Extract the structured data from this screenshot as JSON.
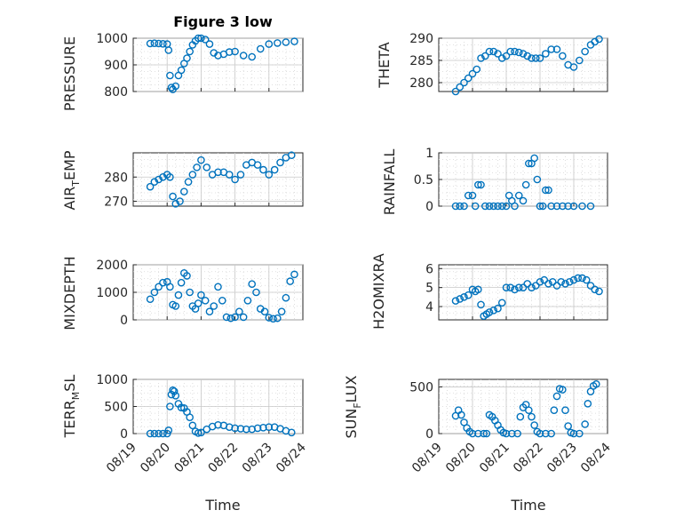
{
  "figure_title": "Figure 3 low",
  "marker_color": "#0072BD",
  "x_tick_labels": [
    "08/19",
    "08/20",
    "08/21",
    "08/22",
    "08/23",
    "08/24"
  ],
  "x_label": "Time",
  "chart_data": [
    {
      "type": "scatter",
      "title": "Figure 3 low",
      "ylabel": "PRESSURE",
      "xlabel": "",
      "ylim": [
        800,
        1000
      ],
      "yticks": [
        800,
        900,
        1000
      ],
      "xlim": [
        "08/19",
        "08/24"
      ],
      "x": [
        "08/19 12:00",
        "08/19 15:00",
        "08/19 18:00",
        "08/19 21:00",
        "08/20 00:00",
        "08/20 01:00",
        "08/20 02:00",
        "08/20 03:00",
        "08/20 04:00",
        "08/20 06:00",
        "08/20 08:00",
        "08/20 10:00",
        "08/20 12:00",
        "08/20 14:00",
        "08/20 16:00",
        "08/20 18:00",
        "08/20 20:00",
        "08/20 22:00",
        "08/21 00:00",
        "08/21 03:00",
        "08/21 06:00",
        "08/21 09:00",
        "08/21 12:00",
        "08/21 16:00",
        "08/21 20:00",
        "08/22 00:00",
        "08/22 06:00",
        "08/22 12:00",
        "08/22 18:00",
        "08/23 00:00",
        "08/23 06:00",
        "08/23 12:00",
        "08/23 18:00"
      ],
      "y": [
        980,
        981,
        980,
        979,
        978,
        955,
        860,
        815,
        808,
        820,
        860,
        880,
        905,
        925,
        950,
        975,
        990,
        1000,
        1000,
        995,
        978,
        945,
        935,
        940,
        948,
        950,
        935,
        930,
        960,
        978,
        982,
        985,
        988
      ]
    },
    {
      "type": "scatter",
      "ylabel": "THETA",
      "xlabel": "",
      "ylim": [
        278,
        290
      ],
      "yticks": [
        280,
        285,
        290
      ],
      "xlim": [
        "08/19",
        "08/24"
      ],
      "x": [
        "08/19 12:00",
        "08/19 15:00",
        "08/19 18:00",
        "08/19 21:00",
        "08/20 00:00",
        "08/20 03:00",
        "08/20 06:00",
        "08/20 09:00",
        "08/20 12:00",
        "08/20 15:00",
        "08/20 18:00",
        "08/20 21:00",
        "08/21 00:00",
        "08/21 03:00",
        "08/21 06:00",
        "08/21 09:00",
        "08/21 12:00",
        "08/21 15:00",
        "08/21 18:00",
        "08/21 21:00",
        "08/22 00:00",
        "08/22 04:00",
        "08/22 08:00",
        "08/22 12:00",
        "08/22 16:00",
        "08/22 20:00",
        "08/23 00:00",
        "08/23 04:00",
        "08/23 08:00",
        "08/23 12:00",
        "08/23 15:00",
        "08/23 18:00"
      ],
      "y": [
        278,
        279,
        280,
        281,
        282,
        283,
        285.5,
        286,
        287,
        287,
        286.5,
        285.5,
        286,
        287,
        287,
        286.8,
        286.5,
        286,
        285.5,
        285.5,
        285.5,
        286.5,
        287.5,
        287.5,
        286,
        284,
        283.5,
        285,
        287,
        288.5,
        289.2,
        289.8
      ]
    },
    {
      "type": "scatter",
      "ylabel": "AIR_TEMP",
      "xlabel": "",
      "ylim": [
        268,
        290
      ],
      "yticks": [
        270,
        280
      ],
      "xlim": [
        "08/19",
        "08/24"
      ],
      "x": [
        "08/19 12:00",
        "08/19 15:00",
        "08/19 18:00",
        "08/19 21:00",
        "08/20 00:00",
        "08/20 02:00",
        "08/20 04:00",
        "08/20 06:00",
        "08/20 09:00",
        "08/20 12:00",
        "08/20 15:00",
        "08/20 18:00",
        "08/20 21:00",
        "08/21 00:00",
        "08/21 04:00",
        "08/21 08:00",
        "08/21 12:00",
        "08/21 16:00",
        "08/21 20:00",
        "08/22 00:00",
        "08/22 04:00",
        "08/22 08:00",
        "08/22 12:00",
        "08/22 16:00",
        "08/22 20:00",
        "08/23 00:00",
        "08/23 04:00",
        "08/23 08:00",
        "08/23 12:00",
        "08/23 16:00"
      ],
      "y": [
        276,
        278,
        279,
        280,
        281,
        280,
        272,
        269,
        270,
        274,
        278,
        281,
        284,
        287,
        284,
        281,
        282,
        282,
        281,
        279,
        281,
        285,
        286,
        285,
        283,
        281,
        283,
        286,
        288,
        289
      ]
    },
    {
      "type": "scatter",
      "ylabel": "RAINFALL",
      "xlabel": "",
      "ylim": [
        0,
        1
      ],
      "yticks": [
        0,
        0.5,
        1
      ],
      "xlim": [
        "08/19",
        "08/24"
      ],
      "x": [
        "08/19 12:00",
        "08/19 15:00",
        "08/19 18:00",
        "08/19 21:00",
        "08/20 00:00",
        "08/20 02:00",
        "08/20 04:00",
        "08/20 06:00",
        "08/20 09:00",
        "08/20 12:00",
        "08/20 15:00",
        "08/20 18:00",
        "08/20 21:00",
        "08/21 00:00",
        "08/21 02:00",
        "08/21 04:00",
        "08/21 06:00",
        "08/21 09:00",
        "08/21 12:00",
        "08/21 14:00",
        "08/21 16:00",
        "08/21 18:00",
        "08/21 20:00",
        "08/21 22:00",
        "08/22 00:00",
        "08/22 02:00",
        "08/22 04:00",
        "08/22 06:00",
        "08/22 08:00",
        "08/22 12:00",
        "08/22 16:00",
        "08/22 20:00",
        "08/23 00:00",
        "08/23 06:00",
        "08/23 12:00"
      ],
      "y": [
        0,
        0,
        0,
        0.2,
        0.2,
        0,
        0.4,
        0.4,
        0,
        0,
        0,
        0,
        0,
        0,
        0.2,
        0.1,
        0,
        0.2,
        0.1,
        0.4,
        0.8,
        0.8,
        0.9,
        0.5,
        0,
        0,
        0.3,
        0.3,
        0,
        0,
        0,
        0,
        0,
        0,
        0
      ]
    },
    {
      "type": "scatter",
      "ylabel": "MIXDEPTH",
      "xlabel": "",
      "ylim": [
        0,
        2000
      ],
      "yticks": [
        0,
        1000,
        2000
      ],
      "xlim": [
        "08/19",
        "08/24"
      ],
      "x": [
        "08/19 12:00",
        "08/19 15:00",
        "08/19 18:00",
        "08/19 21:00",
        "08/20 00:00",
        "08/20 02:00",
        "08/20 04:00",
        "08/20 06:00",
        "08/20 08:00",
        "08/20 10:00",
        "08/20 12:00",
        "08/20 14:00",
        "08/20 16:00",
        "08/20 18:00",
        "08/20 20:00",
        "08/20 22:00",
        "08/21 00:00",
        "08/21 03:00",
        "08/21 06:00",
        "08/21 09:00",
        "08/21 12:00",
        "08/21 15:00",
        "08/21 18:00",
        "08/21 21:00",
        "08/22 00:00",
        "08/22 03:00",
        "08/22 06:00",
        "08/22 09:00",
        "08/22 12:00",
        "08/22 15:00",
        "08/22 18:00",
        "08/22 21:00",
        "08/23 00:00",
        "08/23 03:00",
        "08/23 06:00",
        "08/23 09:00",
        "08/23 12:00",
        "08/23 15:00",
        "08/23 18:00"
      ],
      "y": [
        750,
        1000,
        1200,
        1350,
        1380,
        1200,
        550,
        500,
        900,
        1350,
        1700,
        1600,
        1000,
        500,
        400,
        600,
        900,
        700,
        300,
        500,
        1200,
        700,
        100,
        60,
        100,
        300,
        100,
        700,
        1300,
        1000,
        400,
        300,
        80,
        40,
        60,
        300,
        800,
        1400,
        1650
      ]
    },
    {
      "type": "scatter",
      "ylabel": "H2OMIXRA",
      "xlabel": "",
      "ylim": [
        3.3,
        6.2
      ],
      "yticks": [
        4,
        5,
        6
      ],
      "xlim": [
        "08/19",
        "08/24"
      ],
      "x": [
        "08/19 12:00",
        "08/19 15:00",
        "08/19 18:00",
        "08/19 21:00",
        "08/20 00:00",
        "08/20 02:00",
        "08/20 04:00",
        "08/20 06:00",
        "08/20 08:00",
        "08/20 10:00",
        "08/20 12:00",
        "08/20 15:00",
        "08/20 18:00",
        "08/20 21:00",
        "08/21 00:00",
        "08/21 03:00",
        "08/21 06:00",
        "08/21 09:00",
        "08/21 12:00",
        "08/21 15:00",
        "08/21 18:00",
        "08/21 21:00",
        "08/22 00:00",
        "08/22 03:00",
        "08/22 06:00",
        "08/22 09:00",
        "08/22 12:00",
        "08/22 15:00",
        "08/22 18:00",
        "08/22 21:00",
        "08/23 00:00",
        "08/23 03:00",
        "08/23 06:00",
        "08/23 09:00",
        "08/23 12:00",
        "08/23 15:00",
        "08/23 18:00"
      ],
      "y": [
        4.3,
        4.4,
        4.5,
        4.6,
        4.9,
        4.8,
        4.9,
        4.1,
        3.5,
        3.6,
        3.7,
        3.8,
        3.9,
        4.2,
        5.0,
        5.0,
        4.9,
        5.0,
        5.0,
        5.2,
        5.0,
        5.1,
        5.3,
        5.4,
        5.2,
        5.3,
        5.1,
        5.3,
        5.2,
        5.3,
        5.4,
        5.5,
        5.5,
        5.4,
        5.1,
        4.9,
        4.8
      ]
    },
    {
      "type": "scatter",
      "ylabel": "TERR_MSL",
      "xlabel": "Time",
      "ylim": [
        0,
        1000
      ],
      "yticks": [
        0,
        500,
        1000
      ],
      "xlim": [
        "08/19",
        "08/24"
      ],
      "x": [
        "08/19 12:00",
        "08/19 15:00",
        "08/19 18:00",
        "08/19 21:00",
        "08/20 00:00",
        "08/20 01:00",
        "08/20 02:00",
        "08/20 03:00",
        "08/20 04:00",
        "08/20 05:00",
        "08/20 06:00",
        "08/20 08:00",
        "08/20 10:00",
        "08/20 12:00",
        "08/20 14:00",
        "08/20 16:00",
        "08/20 18:00",
        "08/20 20:00",
        "08/20 22:00",
        "08/21 00:00",
        "08/21 04:00",
        "08/21 08:00",
        "08/21 12:00",
        "08/21 16:00",
        "08/21 20:00",
        "08/22 00:00",
        "08/22 04:00",
        "08/22 08:00",
        "08/22 12:00",
        "08/22 16:00",
        "08/22 20:00",
        "08/23 00:00",
        "08/23 04:00",
        "08/23 08:00",
        "08/23 12:00",
        "08/23 16:00"
      ],
      "y": [
        0,
        0,
        0,
        0,
        0,
        60,
        500,
        720,
        800,
        780,
        700,
        550,
        480,
        470,
        400,
        300,
        150,
        40,
        10,
        20,
        80,
        130,
        160,
        150,
        120,
        100,
        90,
        80,
        80,
        100,
        110,
        120,
        120,
        90,
        50,
        20
      ]
    },
    {
      "type": "scatter",
      "ylabel": "SUN_FLUX",
      "xlabel": "Time",
      "ylim": [
        0,
        580
      ],
      "yticks": [
        0,
        500
      ],
      "xlim": [
        "08/19",
        "08/24"
      ],
      "x": [
        "08/19 12:00",
        "08/19 14:00",
        "08/19 16:00",
        "08/19 18:00",
        "08/19 20:00",
        "08/19 22:00",
        "08/20 00:00",
        "08/20 04:00",
        "08/20 08:00",
        "08/20 10:00",
        "08/20 12:00",
        "08/20 14:00",
        "08/20 16:00",
        "08/20 18:00",
        "08/20 20:00",
        "08/20 22:00",
        "08/21 00:00",
        "08/21 04:00",
        "08/21 08:00",
        "08/21 10:00",
        "08/21 12:00",
        "08/21 14:00",
        "08/21 16:00",
        "08/21 18:00",
        "08/21 20:00",
        "08/21 22:00",
        "08/22 00:00",
        "08/22 04:00",
        "08/22 08:00",
        "08/22 10:00",
        "08/22 12:00",
        "08/22 14:00",
        "08/22 16:00",
        "08/22 18:00",
        "08/22 20:00",
        "08/22 22:00",
        "08/23 00:00",
        "08/23 04:00",
        "08/23 08:00",
        "08/23 10:00",
        "08/23 12:00",
        "08/23 14:00",
        "08/23 16:00"
      ],
      "y": [
        190,
        250,
        200,
        120,
        60,
        20,
        0,
        0,
        0,
        0,
        200,
        180,
        140,
        90,
        40,
        10,
        0,
        0,
        0,
        180,
        280,
        310,
        250,
        180,
        90,
        20,
        0,
        0,
        0,
        250,
        400,
        480,
        470,
        250,
        80,
        10,
        0,
        0,
        100,
        320,
        450,
        510,
        530
      ]
    }
  ]
}
